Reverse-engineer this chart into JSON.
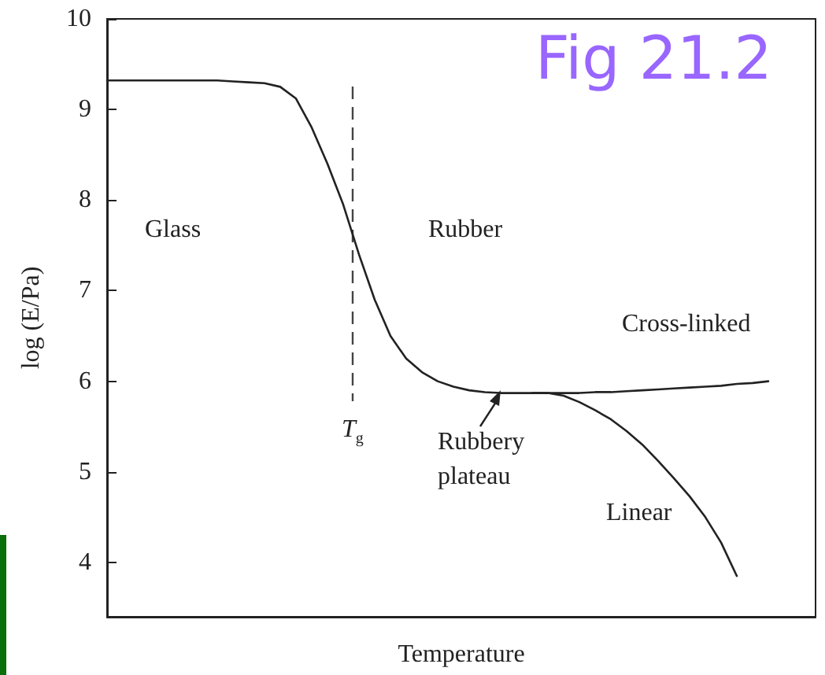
{
  "chart_data": {
    "type": "line",
    "xlabel": "Temperature",
    "ylabel": "log (E/Pa)",
    "categories": [
      null,
      null,
      null,
      null,
      null,
      null,
      null,
      null,
      null,
      null,
      null,
      null,
      null,
      null,
      null,
      null,
      null,
      null,
      null,
      null,
      null,
      null,
      null,
      null,
      null,
      null,
      null,
      null,
      null,
      null,
      null,
      null,
      null,
      null,
      null,
      null,
      null,
      null,
      null,
      null,
      null,
      null,
      null,
      null,
      null,
      null
    ],
    "series": [
      {
        "color": "#222222",
        "values": [
          9.32,
          9.32,
          9.32,
          9.32,
          9.32,
          9.32,
          9.32,
          9.32,
          9.31,
          9.3,
          9.29,
          9.25,
          9.12,
          8.8,
          8.4,
          7.95,
          7.4,
          6.9,
          6.5,
          6.25,
          6.1,
          6.0,
          5.94,
          5.9,
          5.88,
          5.87,
          5.87,
          5.87,
          5.87,
          5.87,
          5.87,
          5.88,
          5.88,
          5.89,
          5.9,
          5.91,
          5.92,
          5.93,
          5.94,
          5.95,
          5.97,
          5.98,
          6.0,
          null,
          null,
          null
        ]
      },
      {
        "color": "#222222",
        "values": [
          null,
          null,
          null,
          null,
          null,
          null,
          null,
          null,
          null,
          null,
          null,
          null,
          null,
          null,
          null,
          null,
          null,
          null,
          null,
          null,
          null,
          null,
          null,
          null,
          null,
          null,
          null,
          5.87,
          5.87,
          5.84,
          5.77,
          5.68,
          5.58,
          5.45,
          5.3,
          5.12,
          4.93,
          4.73,
          4.5,
          4.22,
          3.85,
          null,
          null,
          null,
          null,
          null
        ]
      }
    ],
    "ylim": [
      3.4,
      10
    ],
    "yticks": [
      4,
      5,
      6,
      7,
      8,
      9,
      10
    ],
    "annotations": [
      "Glass",
      "Rubber",
      "Cross-linked",
      "Rubbery\nplateau",
      "Linear",
      "Fig 21.2",
      "T$_{g}$"
    ]
  }
}
